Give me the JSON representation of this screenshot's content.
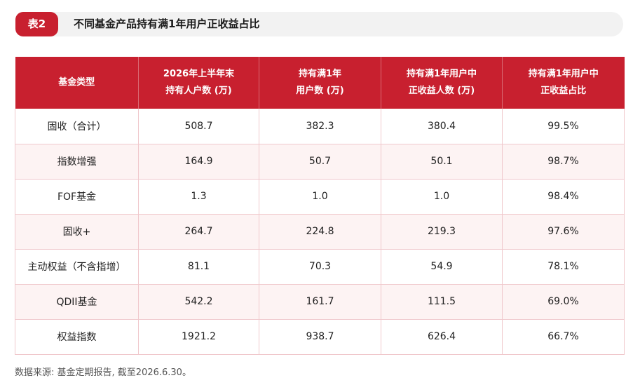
{
  "header": {
    "badge": "表2",
    "title": "不同基金产品持有满1年用户正收益占比"
  },
  "table": {
    "columns": [
      {
        "line1": "基金类型",
        "line2": ""
      },
      {
        "line1": "2026年上半年末",
        "line2": "持有人户数 (万)"
      },
      {
        "line1": "持有满1年",
        "line2": "用户数 (万)"
      },
      {
        "line1": "持有满1年用户中",
        "line2": "正收益人数 (万)"
      },
      {
        "line1": "持有满1年用户中",
        "line2": "正收益占比"
      }
    ],
    "rows": [
      [
        "固收（合计）",
        "508.7",
        "382.3",
        "380.4",
        "99.5%"
      ],
      [
        "指数增强",
        "164.9",
        "50.7",
        "50.1",
        "98.7%"
      ],
      [
        "FOF基金",
        "1.3",
        "1.0",
        "1.0",
        "98.4%"
      ],
      [
        "固收+",
        "264.7",
        "224.8",
        "219.3",
        "97.6%"
      ],
      [
        "主动权益（不含指增）",
        "81.1",
        "70.3",
        "54.9",
        "78.1%"
      ],
      [
        "QDII基金",
        "542.2",
        "161.7",
        "111.5",
        "69.0%"
      ],
      [
        "权益指数",
        "1921.2",
        "938.7",
        "626.4",
        "66.7%"
      ]
    ]
  },
  "footnote": "数据来源: 基金定期报告, 截至2026.6.30。",
  "colors": {
    "accent": "#c8202f",
    "row_alt": "#fdf3f3",
    "title_bar": "#f2f2f2"
  }
}
